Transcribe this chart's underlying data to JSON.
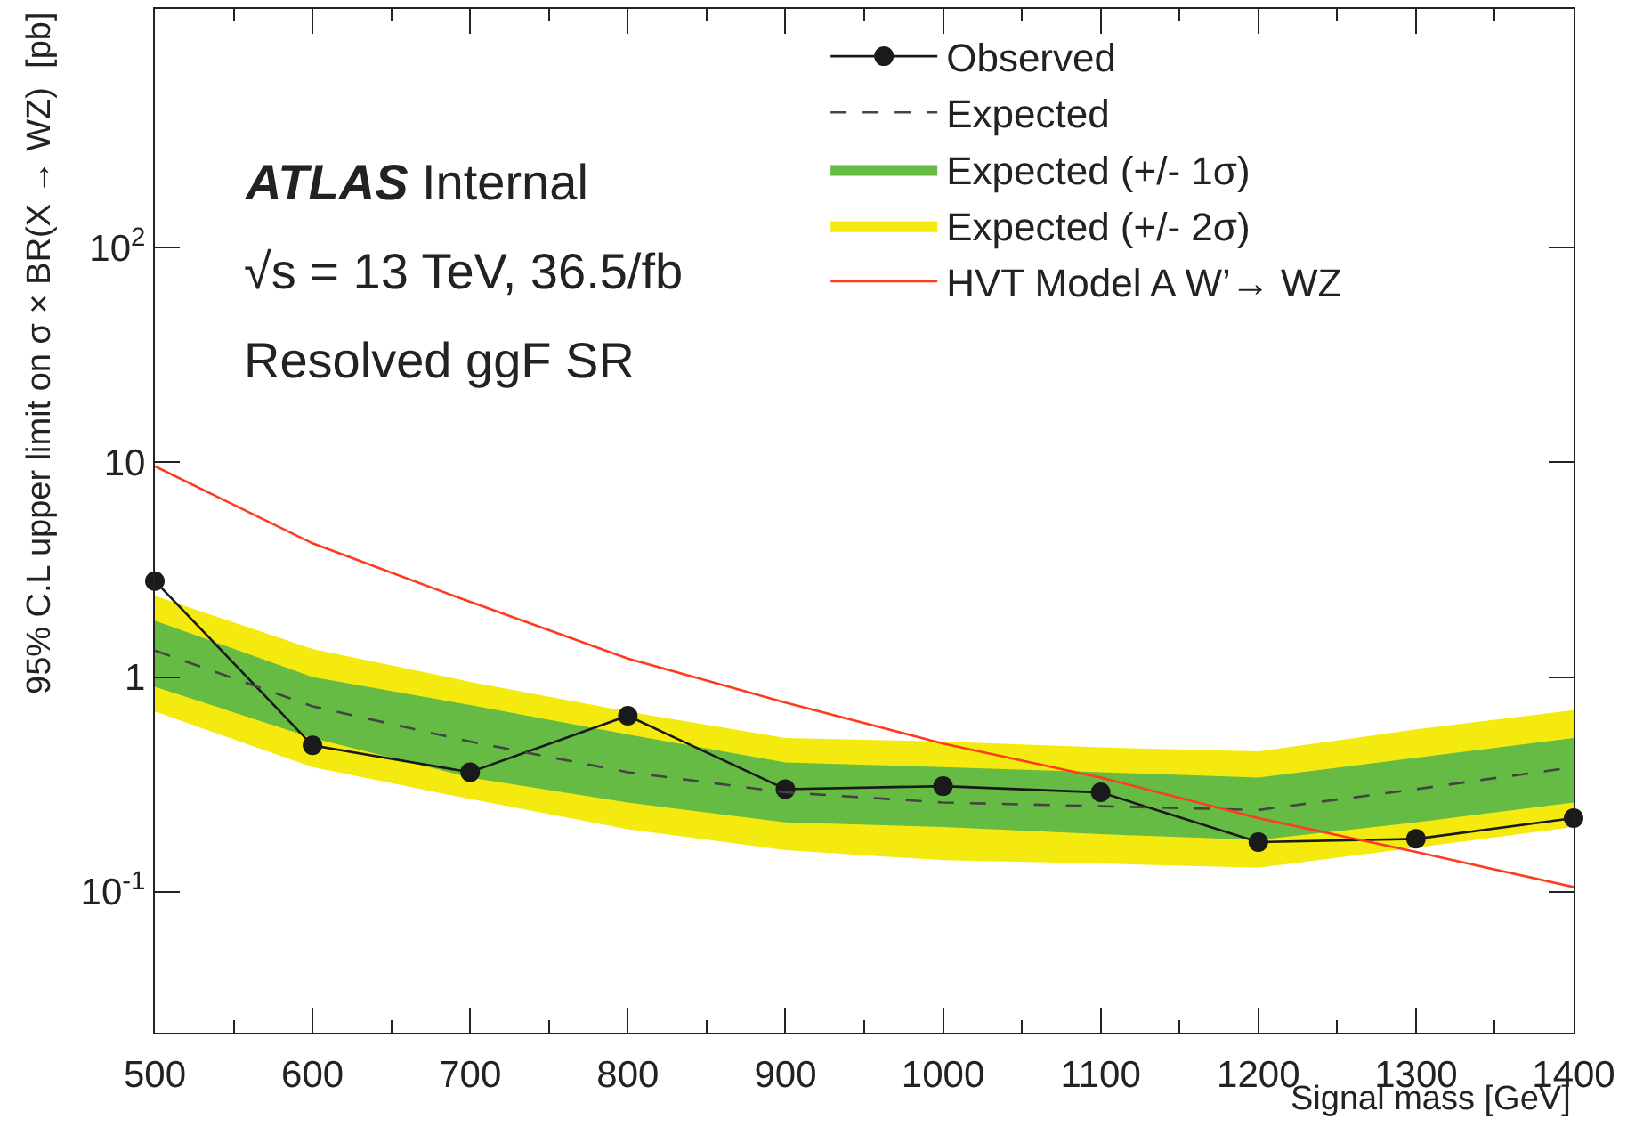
{
  "chart_data": {
    "type": "line",
    "xlabel": "Signal mass [GeV]",
    "ylabel": "95% C.L upper limit on σ × BR(X → WZ)  [pb]",
    "annotations": [
      "ATLAS Internal",
      "√s = 13 TeV, 36.5/fb",
      "Resolved ggF SR"
    ],
    "x": [
      500,
      600,
      700,
      800,
      900,
      1000,
      1100,
      1200,
      1300,
      1400
    ],
    "series": [
      {
        "name": "Observed",
        "color": "#1a1a1a",
        "marker": "circle",
        "line_style": "solid",
        "values": [
          2.8,
          0.48,
          0.36,
          0.66,
          0.3,
          0.31,
          0.29,
          0.17,
          0.176,
          0.22
        ]
      },
      {
        "name": "Expected",
        "color": "#444444",
        "marker": "none",
        "line_style": "dashed",
        "values": [
          1.33,
          0.73,
          0.5,
          0.36,
          0.29,
          0.26,
          0.25,
          0.24,
          0.3,
          0.38
        ]
      },
      {
        "name": "Expected (+/- 1σ)",
        "type": "line",
        "color": "#66bb44",
        "values": [
          null,
          null,
          null,
          null,
          null,
          null,
          null,
          null,
          null,
          null
        ],
        "lower": [
          0.9,
          0.52,
          0.34,
          0.26,
          0.21,
          0.2,
          0.185,
          0.174,
          0.21,
          0.26
        ],
        "upper": [
          1.83,
          1.0,
          0.74,
          0.54,
          0.4,
          0.38,
          0.36,
          0.34,
          0.42,
          0.52
        ]
      },
      {
        "name": "Expected (+/- 2σ)",
        "type": "line",
        "color": "#f4ea10",
        "values": [
          null,
          null,
          null,
          null,
          null,
          null,
          null,
          null,
          null,
          null
        ],
        "lower": [
          0.69,
          0.38,
          0.27,
          0.195,
          0.156,
          0.14,
          0.135,
          0.129,
          0.16,
          0.2
        ],
        "upper": [
          2.39,
          1.35,
          0.95,
          0.69,
          0.52,
          0.5,
          0.47,
          0.45,
          0.57,
          0.7
        ]
      },
      {
        "name": "HVT Model A W’→ WZ",
        "color": "#ff3b1f",
        "marker": "none",
        "line_style": "solid",
        "values": [
          9.6,
          4.2,
          2.24,
          1.22,
          0.76,
          0.49,
          0.34,
          0.22,
          0.153,
          0.105
        ]
      }
    ],
    "log": "y",
    "xlim": [
      500,
      1400
    ],
    "xticks": [
      500,
      600,
      700,
      800,
      900,
      1000,
      1100,
      1200,
      1300,
      1400
    ],
    "ylim": [
      0.022,
      1300
    ],
    "yticks": [
      {
        "value": 0.1,
        "label": "10$^{-1}$"
      },
      1,
      10,
      {
        "value": 100,
        "label": "10$^{2}$"
      }
    ],
    "grid": false,
    "legend": "top right"
  }
}
